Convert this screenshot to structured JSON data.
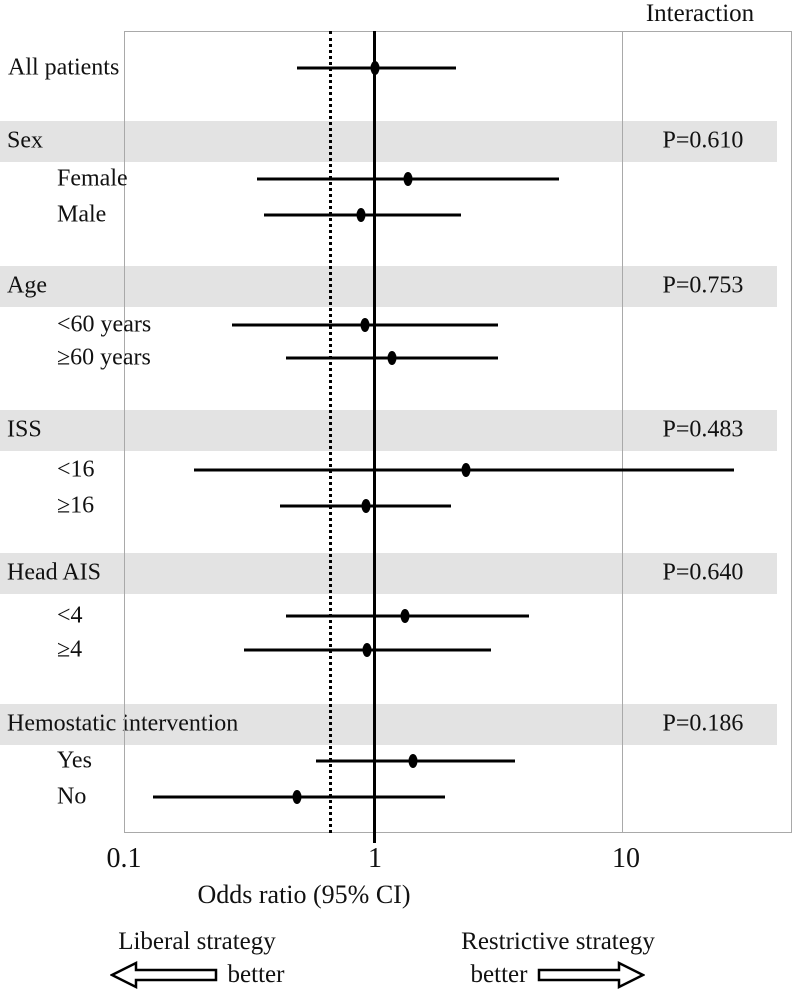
{
  "chart_data": {
    "type": "forest",
    "title": "Interaction",
    "xlabel": "Odds ratio (95% CI)",
    "x_scale": "log",
    "x_ticks": [
      {
        "value": 0.1,
        "label": "0.1"
      },
      {
        "value": 1,
        "label": "1"
      },
      {
        "value": 10,
        "label": "10"
      }
    ],
    "reference_line_solid": 1.0,
    "reference_line_dotted": 0.67,
    "rows": [
      {
        "kind": "point",
        "label": "All patients",
        "indent": false,
        "or": 1.0,
        "lo": 0.49,
        "hi": 2.1
      },
      {
        "kind": "group",
        "label": "Sex",
        "p_label": "P=0.610"
      },
      {
        "kind": "point",
        "label": "Female",
        "indent": true,
        "or": 1.35,
        "lo": 0.34,
        "hi": 5.4
      },
      {
        "kind": "point",
        "label": "Male",
        "indent": true,
        "or": 0.88,
        "lo": 0.36,
        "hi": 2.2
      },
      {
        "kind": "group",
        "label": "Age",
        "p_label": "P=0.753"
      },
      {
        "kind": "point",
        "label": "<60 years",
        "indent": true,
        "or": 0.91,
        "lo": 0.27,
        "hi": 3.1
      },
      {
        "kind": "point",
        "label": "≥60 years",
        "indent": true,
        "or": 1.17,
        "lo": 0.44,
        "hi": 3.1
      },
      {
        "kind": "group",
        "label": "ISS",
        "p_label": "P=0.483"
      },
      {
        "kind": "point",
        "label": "<16",
        "indent": true,
        "or": 2.3,
        "lo": 0.19,
        "hi": 27.0
      },
      {
        "kind": "point",
        "label": "≥16",
        "indent": true,
        "or": 0.92,
        "lo": 0.42,
        "hi": 2.0
      },
      {
        "kind": "group",
        "label": "Head AIS",
        "p_label": "P=0.640"
      },
      {
        "kind": "point",
        "label": "<4",
        "indent": true,
        "or": 1.32,
        "lo": 0.44,
        "hi": 4.1
      },
      {
        "kind": "point",
        "label": "≥4",
        "indent": true,
        "or": 0.93,
        "lo": 0.3,
        "hi": 2.9
      },
      {
        "kind": "group",
        "label": "Hemostatic intervention",
        "p_label": "P=0.186"
      },
      {
        "kind": "point",
        "label": "Yes",
        "indent": true,
        "or": 1.42,
        "lo": 0.58,
        "hi": 3.6
      },
      {
        "kind": "point",
        "label": "No",
        "indent": true,
        "or": 0.49,
        "lo": 0.13,
        "hi": 1.9
      }
    ],
    "footer": {
      "left_line1": "Liberal strategy",
      "left_line2": "better",
      "right_line1": "Restrictive strategy",
      "right_line2": "better"
    },
    "colors": {
      "band": "#e3e3e3",
      "line": "#000000",
      "frame": "#a9a9a9",
      "text": "#111111"
    }
  }
}
